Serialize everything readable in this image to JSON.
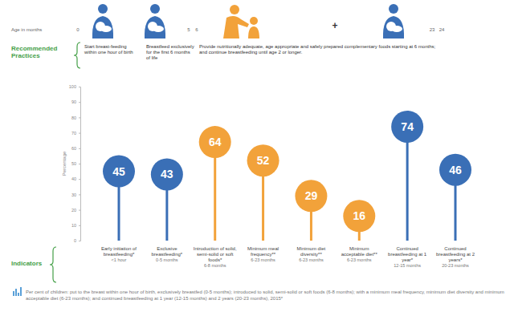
{
  "chart_data": {
    "type": "lollipop",
    "timeline_label": "Age in months",
    "timeline_ticks": [
      0,
      5,
      6,
      23,
      24
    ],
    "practices_label": "Recommended Practices",
    "practices": [
      "Start breast-feeding within one hour of birth",
      "Breastfeed exclusively for the first 6 months of life",
      "Provide nutritionally adequate, age appropriate and safely prepared complementary foods starting at 6 months; and continue breastfeeding until age 2 or longer."
    ],
    "plus": "+",
    "indicators_label": "Indicators",
    "ylabel": "Percentage",
    "categories": [
      "Early initiation of breastfeeding*",
      "Exclusive breastfeeding*",
      "Introduction of solid, semi-solid or soft foods*",
      "Minimum meal frequency**",
      "Minimum diet diversity**",
      "Minimum acceptable diet**",
      "Continued breastfeeding at 1 year*",
      "Continued breastfeeding at 2 years*"
    ],
    "category_ranges": [
      "<1 hour",
      "0-5 months",
      "6-8 months",
      "6-23 months",
      "6-23 months",
      "6-23 months",
      "12-15 months",
      "20-23 months"
    ],
    "values": [
      45,
      43,
      64,
      52,
      29,
      16,
      74,
      46
    ],
    "colors": [
      "#3a6fb6",
      "#3a6fb6",
      "#f2a23a",
      "#f2a23a",
      "#f2a23a",
      "#f2a23a",
      "#3a6fb6",
      "#3a6fb6"
    ],
    "ylim": [
      0,
      100
    ],
    "yticks": [
      0,
      10,
      20,
      30,
      40,
      50,
      60,
      70,
      80,
      90,
      100
    ],
    "data_labels": true,
    "footnote": "Per cent of children: put to the breast within one hour of birth, exclusively breastfed (0-5 months); introduced to solid, semi-solid or soft foods (6-8 months); with a minimum meal frequency, minimum diet diversity and minimum acceptable diet (6-23 months); and continued breastfeeding at 1 year (12-15 months) and 2 years (20-23 months), 2015*"
  }
}
